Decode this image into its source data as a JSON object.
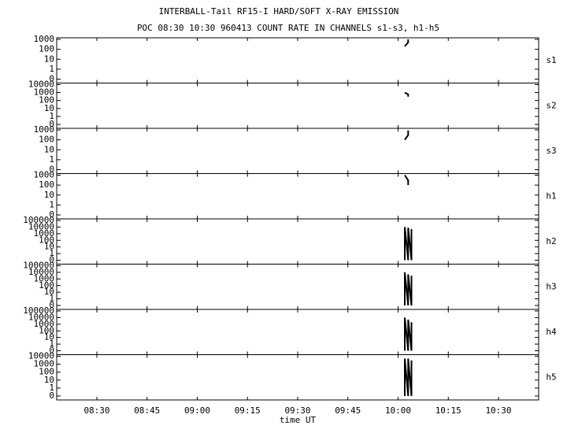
{
  "title": "INTERBALL-Tail RF15-I HARD/SOFT X-RAY EMISSION",
  "subtitle": "POC 08:30 10:30 960413  COUNT RATE IN CHANNELS s1-s3, h1-h5",
  "time_axis": {
    "label": "time UT",
    "xlim": [
      498,
      642
    ],
    "xticks": [
      {
        "value": 510,
        "label": "08:30"
      },
      {
        "value": 525,
        "label": "08:45"
      },
      {
        "value": 540,
        "label": "09:00"
      },
      {
        "value": 555,
        "label": "09:15"
      },
      {
        "value": 570,
        "label": "09:30"
      },
      {
        "value": 585,
        "label": "09:45"
      },
      {
        "value": 600,
        "label": "10:00"
      },
      {
        "value": 615,
        "label": "10:15"
      },
      {
        "value": 630,
        "label": "10:30"
      }
    ]
  },
  "chart_data": [
    {
      "type": "line",
      "label": "s1",
      "yscale": "log",
      "ylim": [
        0,
        1000
      ],
      "yticks": [
        0,
        1,
        10,
        100,
        1000
      ],
      "color": "#000000",
      "x": [
        "10:02",
        "10:03",
        "10:03"
      ],
      "values": [
        200,
        500,
        1000
      ]
    },
    {
      "type": "line",
      "label": "s2",
      "yscale": "log",
      "ylim": [
        0,
        10000
      ],
      "yticks": [
        0,
        1,
        10,
        100,
        1000,
        10000
      ],
      "color": "#000000",
      "x": [
        "10:02",
        "10:03",
        "10:03"
      ],
      "values": [
        1000,
        600,
        300
      ]
    },
    {
      "type": "line",
      "label": "s3",
      "yscale": "log",
      "ylim": [
        0,
        1000
      ],
      "yticks": [
        0,
        1,
        10,
        100,
        1000
      ],
      "color": "#000000",
      "x": [
        "10:02",
        "10:03",
        "10:03"
      ],
      "values": [
        100,
        300,
        900
      ]
    },
    {
      "type": "line",
      "label": "h1",
      "yscale": "log",
      "ylim": [
        0,
        1000
      ],
      "yticks": [
        0,
        1,
        10,
        100,
        1000
      ],
      "color": "#000000",
      "x": [
        "10:02",
        "10:03",
        "10:03"
      ],
      "values": [
        1000,
        300,
        100
      ]
    },
    {
      "type": "line",
      "label": "h2",
      "yscale": "log",
      "ylim": [
        0,
        100000
      ],
      "yticks": [
        0,
        1,
        10,
        100,
        1000,
        10000,
        100000
      ],
      "color": "#000000",
      "x": [
        "10:02",
        "10:02",
        "10:03",
        "10:03",
        "10:04",
        "10:04"
      ],
      "values": [
        0,
        10000,
        0,
        8000,
        0,
        5000
      ]
    },
    {
      "type": "line",
      "label": "h3",
      "yscale": "log",
      "ylim": [
        0,
        100000
      ],
      "yticks": [
        0,
        1,
        10,
        100,
        1000,
        10000,
        100000
      ],
      "color": "#000000",
      "x": [
        "10:02",
        "10:02",
        "10:03",
        "10:03",
        "10:04",
        "10:04"
      ],
      "values": [
        0,
        10000,
        0,
        5000,
        0,
        3000
      ]
    },
    {
      "type": "line",
      "label": "h4",
      "yscale": "log",
      "ylim": [
        0,
        100000
      ],
      "yticks": [
        0,
        1,
        10,
        100,
        1000,
        10000,
        100000
      ],
      "color": "#000000",
      "x": [
        "10:02",
        "10:02",
        "10:03",
        "10:03",
        "10:04",
        "10:04"
      ],
      "values": [
        0,
        10000,
        0,
        5000,
        0,
        2000
      ]
    },
    {
      "type": "line",
      "label": "h5",
      "yscale": "log",
      "ylim": [
        0,
        10000
      ],
      "yticks": [
        0,
        1,
        10,
        100,
        1000,
        10000
      ],
      "color": "#000000",
      "x": [
        "10:02",
        "10:02",
        "10:03",
        "10:03",
        "10:04",
        "10:04"
      ],
      "values": [
        0,
        5000,
        0,
        5000,
        0,
        3000
      ]
    }
  ]
}
